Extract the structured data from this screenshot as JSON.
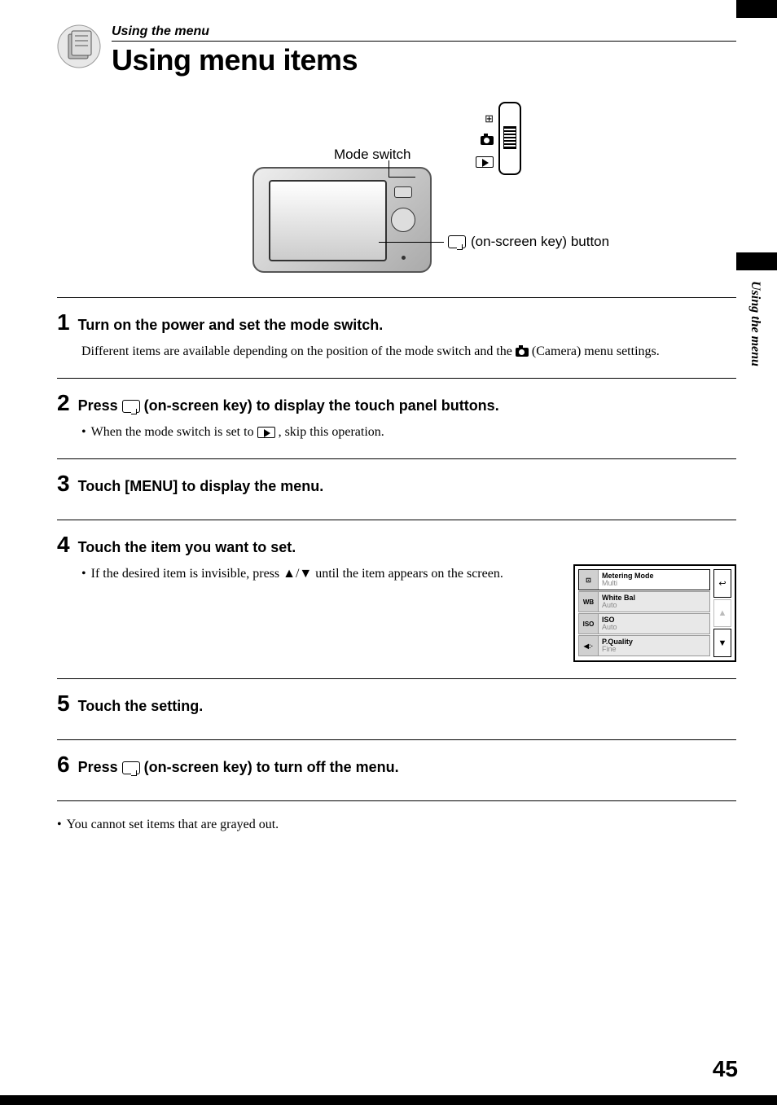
{
  "chapter_label": "Using the menu",
  "page_title": "Using menu items",
  "side_tab_label": "Using the menu",
  "diagram": {
    "mode_switch_label": "Mode switch",
    "onscreen_key_label": "(on-screen key) button"
  },
  "steps": [
    {
      "num": "1",
      "title": "Turn on the power and set the mode switch.",
      "body_prefix": "Different items are available depending on the position of the mode switch and the ",
      "body_suffix": " (Camera) menu settings."
    },
    {
      "num": "2",
      "title_prefix": "Press ",
      "title_suffix": " (on-screen key) to display the touch panel buttons.",
      "bullet_prefix": "When the mode switch is set to ",
      "bullet_suffix": " , skip this operation."
    },
    {
      "num": "3",
      "title": "Touch [MENU] to display the menu."
    },
    {
      "num": "4",
      "title": "Touch the item you want to set.",
      "bullet": "If the desired item is invisible, press ▲/▼ until the item appears on the screen."
    },
    {
      "num": "5",
      "title": "Touch the setting."
    },
    {
      "num": "6",
      "title_prefix": "Press ",
      "title_suffix": " (on-screen key) to turn off the menu."
    }
  ],
  "menu_panel": {
    "items": [
      {
        "icon": "⊡",
        "title": "Metering Mode",
        "value": "Multi",
        "active": true
      },
      {
        "icon": "WB",
        "title": "White Bal",
        "value": "Auto",
        "active": false
      },
      {
        "icon": "ISO",
        "title": "ISO",
        "value": "Auto",
        "active": false
      },
      {
        "icon": "◀:·",
        "title": "P.Quality",
        "value": "Fine",
        "active": false
      }
    ],
    "side_buttons": [
      "↩",
      "▲",
      "▼"
    ]
  },
  "footnote": "You cannot set items that are grayed out.",
  "page_number": "45",
  "colors": {
    "text": "#000000",
    "background": "#ffffff",
    "rule": "#000000",
    "menu_inactive_bg": "#e8e8e8",
    "menu_value": "#888888"
  }
}
